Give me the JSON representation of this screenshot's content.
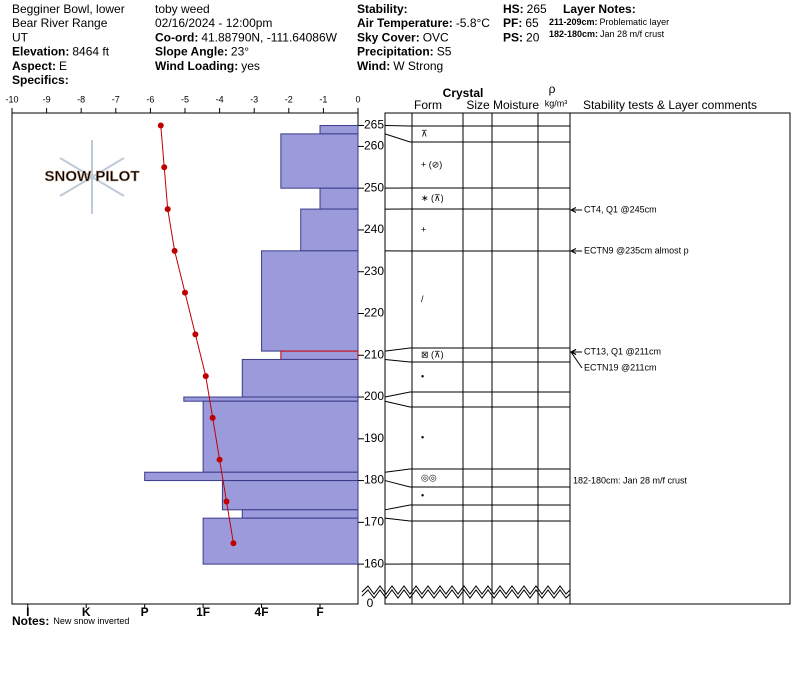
{
  "header": {
    "columns": [
      [
        {
          "value": "Begginer Bowl, lower"
        },
        {
          "value": "Bear River Range"
        },
        {
          "value": "UT"
        },
        {
          "label": "Elevation:",
          "value": "8464 ft"
        },
        {
          "label": "Aspect:",
          "value": "E"
        },
        {
          "label": "Specifics:"
        }
      ],
      [
        {
          "value": "toby weed"
        },
        {
          "value": "02/16/2024 - 12:00pm"
        },
        {
          "label": "Co-ord:",
          "value": "41.88790N, -111.64086W"
        },
        {
          "label": "Slope Angle:",
          "value": "23°"
        },
        {
          "label": "Wind Loading:",
          "value": "yes"
        }
      ],
      [
        {
          "label": "Stability:"
        },
        {
          "label": "Air Temperature:",
          "value": "-5.8°C"
        },
        {
          "label": "Sky Cover:",
          "value": "OVC"
        },
        {
          "label": "Precipitation:",
          "value": "S5"
        },
        {
          "label": "Wind:",
          "value": "W Strong"
        }
      ],
      [
        {
          "label": "HS:",
          "value": 265
        },
        {
          "label": "PF:",
          "value": 65
        },
        {
          "label": "PS:",
          "value": 20
        }
      ]
    ],
    "layer_notes": {
      "title": "Layer Notes:",
      "items": [
        {
          "label": "211-209cm:",
          "value": "Problematic layer"
        },
        {
          "label": "182-180cm:",
          "value": "Jan 28 m/f crust"
        }
      ]
    }
  },
  "chart_data": {
    "type": "snow_profile",
    "watermark": "SNOW PILOT",
    "temperature_axis": {
      "xlim": [
        -10,
        0
      ],
      "xticks": [
        -10,
        -9,
        -8,
        -7,
        -6,
        -5,
        -4,
        -3,
        -2,
        -1,
        0
      ]
    },
    "depth_axis": {
      "ylim": [
        155,
        268
      ],
      "yticks": [
        265,
        260,
        250,
        240,
        230,
        220,
        210,
        200,
        190,
        180,
        170,
        160
      ],
      "base_tick": 0
    },
    "hardness_axis": {
      "xlim": [
        0.35,
        6.27
      ],
      "xticks": [
        {
          "value": 6,
          "label": "I"
        },
        {
          "value": 5,
          "label": "K"
        },
        {
          "value": 4,
          "label": "P"
        },
        {
          "value": 3,
          "label": "1F"
        },
        {
          "value": 2,
          "label": "4F"
        },
        {
          "value": 1,
          "label": "F"
        }
      ]
    },
    "layers": {
      "top": [
        265,
        263,
        250,
        245,
        235,
        211,
        209,
        200,
        199,
        182,
        180,
        173,
        171
      ],
      "bottom": [
        263,
        250,
        245,
        235,
        211,
        209,
        200,
        199,
        182,
        180,
        173,
        171,
        160
      ],
      "hardness": [
        1,
        1.67,
        1,
        1.33,
        2,
        1.67,
        2.33,
        3.33,
        3,
        4,
        2.67,
        2.33,
        3
      ],
      "forms": [
        "⊼",
        "+ (⊘)",
        "∗ (⊼)",
        "+",
        "/",
        "⊠ (⊼)",
        "•",
        null,
        "•",
        "◎◎",
        "•",
        null,
        null
      ],
      "color": "#9b9bdb",
      "outline_colors": [
        "#3a3a8a",
        "#3a3a8a",
        "#3a3a8a",
        "#3a3a8a",
        "#3a3a8a",
        "#cc0000",
        "#3a3a8a",
        "#3a3a8a",
        "#3a3a8a",
        "#3a3a8a",
        "#3a3a8a",
        "#3a3a8a",
        "#3a3a8a"
      ]
    },
    "temperature_profile": {
      "color": "#c00000",
      "depth": [
        265,
        255,
        245,
        235,
        225,
        215,
        205,
        195,
        185,
        175,
        165
      ],
      "temp": [
        -5.7,
        -5.6,
        -5.5,
        -5.3,
        -5.0,
        -4.7,
        -4.4,
        -4.2,
        -4.0,
        -3.8,
        -3.6
      ]
    },
    "table": {
      "header": {
        "crystal": "Crystal",
        "form": "Form",
        "size": "Size",
        "moisture": "Moisture",
        "rho": "ρ",
        "density_unit": "kg/m³",
        "comments": "Stability tests & Layer comments"
      },
      "stability_tests": [
        "CT4, Q1 @245cm",
        "ECTN9 @235cm  almost p",
        "CT13, Q1 @211cm",
        "ECTN19 @211cm"
      ],
      "layer_comment": "182-180cm: Jan 28 m/f crust"
    },
    "notes": {
      "label": "Notes:",
      "value": "New snow inverted"
    }
  }
}
